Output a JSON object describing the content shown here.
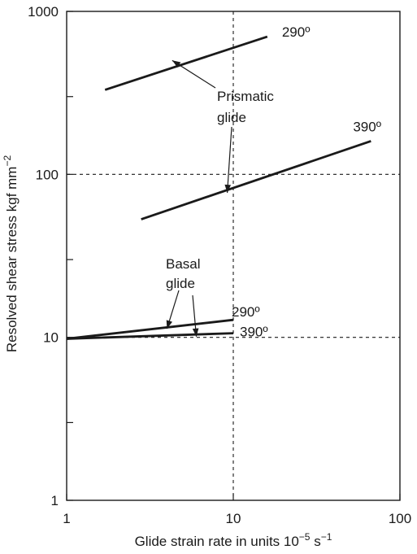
{
  "chart_data": {
    "type": "line",
    "xscale": "log",
    "yscale": "log",
    "xlim": [
      1,
      100
    ],
    "ylim": [
      1,
      1000
    ],
    "xticks": [
      {
        "value": 1,
        "label": "1"
      },
      {
        "value": 10,
        "label": "10"
      },
      {
        "value": 100,
        "label": "100"
      }
    ],
    "yticks": [
      {
        "value": 1,
        "label": "1"
      },
      {
        "value": 10,
        "label": "10"
      },
      {
        "value": 100,
        "label": "100"
      },
      {
        "value": 1000,
        "label": "1000"
      }
    ],
    "yminor": [
      3,
      30,
      300
    ],
    "xlabel": {
      "main": "Glide strain rate in units 10",
      "sup1": "−5",
      "mid": " s",
      "sup2": "−1"
    },
    "ylabel": {
      "main": "Resolved shear stress kgf mm",
      "sup": "−2"
    },
    "grid": false,
    "reference_lines": [
      {
        "axis": "x",
        "value": 10
      },
      {
        "axis": "y",
        "value": 100
      },
      {
        "axis": "y",
        "value": 10
      }
    ],
    "series": [
      {
        "label": "290º",
        "group": "Prismatic glide",
        "x": [
          1.7,
          16
        ],
        "y": [
          330,
          700
        ]
      },
      {
        "label": "390º",
        "group": "Prismatic glide",
        "x": [
          2.8,
          67
        ],
        "y": [
          53,
          160
        ]
      },
      {
        "label": "290º",
        "group": "Basal glide",
        "x": [
          1,
          10
        ],
        "y": [
          9.8,
          12.8
        ]
      },
      {
        "label": "390º",
        "group": "Basal glide",
        "x": [
          1,
          10
        ],
        "y": [
          9.8,
          10.6
        ]
      }
    ],
    "annotations": [
      {
        "lines": [
          "Prismatic",
          "glide"
        ],
        "arrows_to": [
          {
            "x": 4.3,
            "y": 500
          },
          {
            "x": 9.2,
            "y": 77
          }
        ]
      },
      {
        "lines": [
          "Basal",
          "glide"
        ],
        "arrows_to": [
          {
            "x": 4.0,
            "y": 11.3
          },
          {
            "x": 6.0,
            "y": 10.1
          }
        ]
      }
    ]
  }
}
